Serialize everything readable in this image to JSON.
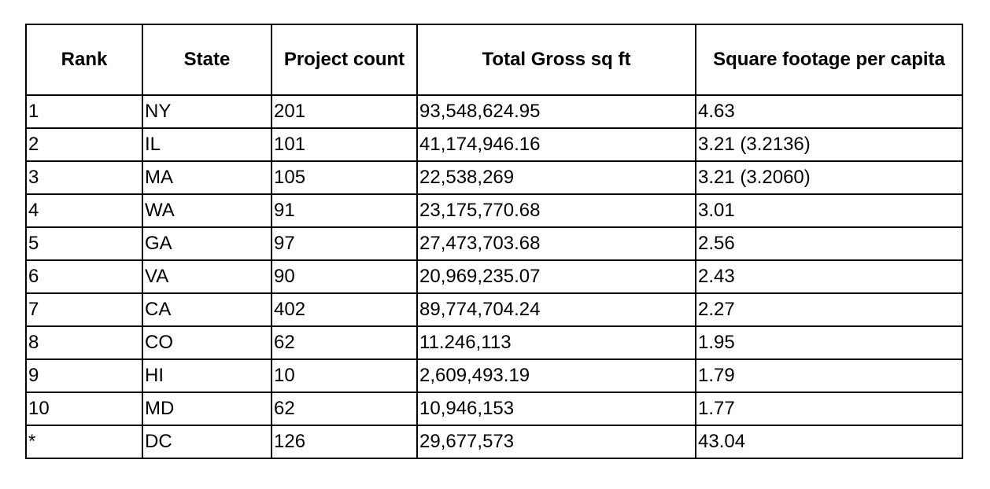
{
  "table": {
    "headers": {
      "rank": "Rank",
      "state": "State",
      "project_count": "Project count",
      "total_gross": "Total Gross sq ft",
      "per_capita": "Square footage per capita"
    },
    "rows": [
      {
        "rank": "1",
        "state": "NY",
        "project_count": "201",
        "total_gross": "93,548,624.95",
        "per_capita": "4.63"
      },
      {
        "rank": "2",
        "state": "IL",
        "project_count": "101",
        "total_gross": "41,174,946.16",
        "per_capita": "3.21 (3.2136)"
      },
      {
        "rank": "3",
        "state": "MA",
        "project_count": "105",
        "total_gross": "22,538,269",
        "per_capita": "3.21 (3.2060)"
      },
      {
        "rank": "4",
        "state": "WA",
        "project_count": "91",
        "total_gross": "23,175,770.68",
        "per_capita": "3.01"
      },
      {
        "rank": "5",
        "state": "GA",
        "project_count": "97",
        "total_gross": "27,473,703.68",
        "per_capita": "2.56"
      },
      {
        "rank": "6",
        "state": "VA",
        "project_count": "90",
        "total_gross": "20,969,235.07",
        "per_capita": "2.43"
      },
      {
        "rank": "7",
        "state": "CA",
        "project_count": "402",
        "total_gross": "89,774,704.24",
        "per_capita": "2.27"
      },
      {
        "rank": "8",
        "state": "CO",
        "project_count": "62",
        "total_gross": "11.246,113",
        "per_capita": "1.95"
      },
      {
        "rank": "9",
        "state": "HI",
        "project_count": "10",
        "total_gross": "2,609,493.19",
        "per_capita": "1.79"
      },
      {
        "rank": "10",
        "state": "MD",
        "project_count": "62",
        "total_gross": "10,946,153",
        "per_capita": "1.77"
      },
      {
        "rank": "*",
        "state": "DC",
        "project_count": "126",
        "total_gross": "29,677,573",
        "per_capita": "43.04"
      }
    ]
  }
}
